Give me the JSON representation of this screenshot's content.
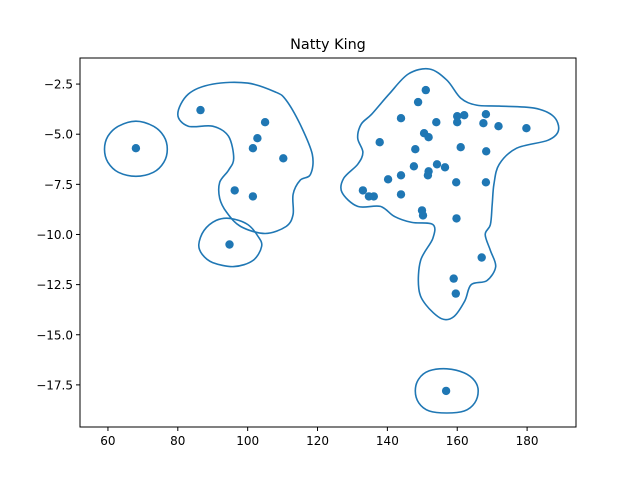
{
  "chart_data": {
    "type": "scatter",
    "title": "Natty King",
    "xlabel": "",
    "ylabel": "",
    "xlim": [
      52,
      194
    ],
    "ylim": [
      -19.6,
      -1.2
    ],
    "x_ticks": [
      60,
      80,
      100,
      120,
      140,
      160,
      180
    ],
    "y_ticks": [
      -2.5,
      -5.0,
      -7.5,
      -10.0,
      -12.5,
      -15.0,
      -17.5
    ],
    "x_tick_labels": [
      "60",
      "80",
      "100",
      "120",
      "140",
      "160",
      "180"
    ],
    "y_tick_labels": [
      "−2.5",
      "−5.0",
      "−7.5",
      "−10.0",
      "−12.5",
      "−15.0",
      "−17.5"
    ],
    "grid": false,
    "color": "#1f77b4",
    "points": [
      [
        68,
        -5.7
      ],
      [
        86.5,
        -3.8
      ],
      [
        105,
        -4.4
      ],
      [
        102.8,
        -5.2
      ],
      [
        101.5,
        -5.7
      ],
      [
        110.2,
        -6.2
      ],
      [
        96.3,
        -7.8
      ],
      [
        101.5,
        -8.1
      ],
      [
        94.8,
        -10.5
      ],
      [
        151,
        -2.8
      ],
      [
        148.8,
        -3.4
      ],
      [
        143.9,
        -4.2
      ],
      [
        154,
        -4.4
      ],
      [
        150.5,
        -4.95
      ],
      [
        151.8,
        -5.15
      ],
      [
        137.8,
        -5.4
      ],
      [
        148,
        -5.75
      ],
      [
        161,
        -5.65
      ],
      [
        160,
        -4.1
      ],
      [
        162,
        -4.05
      ],
      [
        160,
        -4.4
      ],
      [
        167.5,
        -4.45
      ],
      [
        168.2,
        -4.0
      ],
      [
        171.8,
        -4.6
      ],
      [
        179.8,
        -4.7
      ],
      [
        168.3,
        -5.85
      ],
      [
        154.2,
        -6.5
      ],
      [
        147.6,
        -6.6
      ],
      [
        156.5,
        -6.65
      ],
      [
        151.8,
        -6.85
      ],
      [
        151.6,
        -7.05
      ],
      [
        143.9,
        -7.05
      ],
      [
        140.2,
        -7.25
      ],
      [
        159.7,
        -7.4
      ],
      [
        168.2,
        -7.4
      ],
      [
        133,
        -7.8
      ],
      [
        134.7,
        -8.1
      ],
      [
        136.1,
        -8.1
      ],
      [
        143.9,
        -8.0
      ],
      [
        149.9,
        -8.8
      ],
      [
        150.2,
        -9.05
      ],
      [
        159.8,
        -9.2
      ],
      [
        167,
        -11.15
      ],
      [
        159,
        -12.2
      ],
      [
        159.6,
        -12.95
      ],
      [
        156.8,
        -17.8
      ]
    ],
    "contour_levels": [
      {
        "name": "small-left",
        "points": [
          [
            59,
            -5.75
          ],
          [
            60,
            -5.1
          ],
          [
            63,
            -4.6
          ],
          [
            68,
            -4.35
          ],
          [
            73,
            -4.6
          ],
          [
            76,
            -5.1
          ],
          [
            77,
            -5.75
          ],
          [
            76,
            -6.4
          ],
          [
            73,
            -6.9
          ],
          [
            68,
            -7.1
          ],
          [
            63,
            -6.9
          ],
          [
            60,
            -6.4
          ]
        ]
      },
      {
        "name": "left-main",
        "points": [
          [
            80,
            -4.0
          ],
          [
            83,
            -3.0
          ],
          [
            90,
            -2.5
          ],
          [
            100,
            -2.45
          ],
          [
            108,
            -2.9
          ],
          [
            111,
            -3.3
          ],
          [
            115,
            -4.5
          ],
          [
            118.5,
            -6.0
          ],
          [
            118,
            -7.0
          ],
          [
            115,
            -7.3
          ],
          [
            113,
            -8.0
          ],
          [
            113,
            -9.0
          ],
          [
            111,
            -9.6
          ],
          [
            105,
            -9.95
          ],
          [
            98,
            -9.6
          ],
          [
            94,
            -8.9
          ],
          [
            92,
            -8.2
          ],
          [
            92,
            -7.4
          ],
          [
            94.5,
            -6.8
          ],
          [
            96,
            -6.2
          ],
          [
            94.5,
            -5.1
          ],
          [
            90,
            -4.6
          ],
          [
            83,
            -4.6
          ]
        ]
      },
      {
        "name": "left-bottom",
        "points": [
          [
            86,
            -10.5
          ],
          [
            87.5,
            -9.8
          ],
          [
            91,
            -9.3
          ],
          [
            95,
            -9.2
          ],
          [
            100,
            -9.5
          ],
          [
            103,
            -10.1
          ],
          [
            104,
            -10.6
          ],
          [
            101.5,
            -11.3
          ],
          [
            96,
            -11.6
          ],
          [
            90,
            -11.4
          ],
          [
            87,
            -11.0
          ]
        ]
      },
      {
        "name": "right-main",
        "points": [
          [
            127,
            -7.9
          ],
          [
            127.5,
            -7.2
          ],
          [
            131.5,
            -6.5
          ],
          [
            133,
            -5.9
          ],
          [
            131.5,
            -5.2
          ],
          [
            132.5,
            -4.5
          ],
          [
            135.5,
            -4.0
          ],
          [
            140.5,
            -3.0
          ],
          [
            146,
            -2.0
          ],
          [
            152,
            -1.75
          ],
          [
            157,
            -2.3
          ],
          [
            161,
            -3.2
          ],
          [
            165.5,
            -3.55
          ],
          [
            172,
            -3.6
          ],
          [
            182,
            -3.7
          ],
          [
            187.5,
            -4.1
          ],
          [
            189,
            -4.8
          ],
          [
            186,
            -5.3
          ],
          [
            177,
            -5.7
          ],
          [
            172,
            -6.5
          ],
          [
            170.5,
            -7.5
          ],
          [
            170,
            -8.5
          ],
          [
            169.5,
            -9.5
          ],
          [
            168,
            -10.0
          ],
          [
            169.5,
            -10.8
          ],
          [
            171,
            -11.6
          ],
          [
            168.5,
            -12.3
          ],
          [
            164,
            -12.5
          ],
          [
            162.2,
            -13.3
          ],
          [
            159,
            -14.1
          ],
          [
            155.5,
            -14.2
          ],
          [
            151,
            -13.5
          ],
          [
            149,
            -12.7
          ],
          [
            149.5,
            -11.3
          ],
          [
            153,
            -10.2
          ],
          [
            153,
            -9.5
          ],
          [
            147,
            -9.4
          ],
          [
            142,
            -9.1
          ],
          [
            138,
            -8.6
          ],
          [
            131.5,
            -8.6
          ]
        ]
      },
      {
        "name": "bottom-right",
        "points": [
          [
            148,
            -17.8
          ],
          [
            149,
            -17.2
          ],
          [
            152,
            -16.8
          ],
          [
            157,
            -16.7
          ],
          [
            162,
            -16.9
          ],
          [
            165,
            -17.3
          ],
          [
            166,
            -17.8
          ],
          [
            165,
            -18.4
          ],
          [
            162,
            -18.8
          ],
          [
            157,
            -18.9
          ],
          [
            152,
            -18.8
          ],
          [
            149,
            -18.4
          ]
        ]
      }
    ]
  }
}
